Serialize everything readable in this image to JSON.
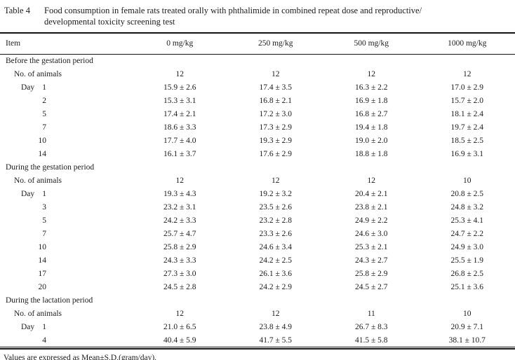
{
  "title": {
    "label": "Table 4",
    "caption_line1": "Food consumption in female rats treated orally with phthalimide in combined repeat dose and reproductive/",
    "caption_line2": "developmental toxicity screening test"
  },
  "colors": {
    "ink": "#1b1b1b",
    "background": "#ffffff"
  },
  "table": {
    "columns": [
      "Item",
      "0 mg/kg",
      "250 mg/kg",
      "500 mg/kg",
      "1000 mg/kg"
    ],
    "sections": [
      {
        "title": "Before the gestation period",
        "day_word": "Day",
        "no_of_animals": {
          "label": "No. of animals",
          "values": [
            "12",
            "12",
            "12",
            "12"
          ]
        },
        "days": [
          {
            "day": "1",
            "values": [
              "15.9 ± 2.6",
              "17.4 ± 3.5",
              "16.3 ± 2.2",
              "17.0 ± 2.9"
            ]
          },
          {
            "day": "2",
            "values": [
              "15.3 ± 3.1",
              "16.8 ± 2.1",
              "16.9 ± 1.8",
              "15.7 ± 2.0"
            ]
          },
          {
            "day": "5",
            "values": [
              "17.4 ± 2.1",
              "17.2 ± 3.0",
              "16.8 ± 2.7",
              "18.1 ± 2.4"
            ]
          },
          {
            "day": "7",
            "values": [
              "18.6 ± 3.3",
              "17.3 ± 2.9",
              "19.4 ± 1.8",
              "19.7 ± 2.4"
            ]
          },
          {
            "day": "10",
            "values": [
              "17.7 ± 4.0",
              "19.3 ± 2.9",
              "19.0 ± 2.0",
              "18.5 ± 2.5"
            ]
          },
          {
            "day": "14",
            "values": [
              "16.1 ± 3.7",
              "17.6 ± 2.9",
              "18.8 ± 1.8",
              "16.9 ± 3.1"
            ]
          }
        ]
      },
      {
        "title": "During the gestation period",
        "day_word": "Day",
        "no_of_animals": {
          "label": "No. of animals",
          "values": [
            "12",
            "12",
            "12",
            "10"
          ]
        },
        "days": [
          {
            "day": "1",
            "values": [
              "19.3 ± 4.3",
              "19.2 ± 3.2",
              "20.4 ± 2.1",
              "20.8 ± 2.5"
            ]
          },
          {
            "day": "3",
            "values": [
              "23.2 ± 3.1",
              "23.5 ± 2.6",
              "23.8 ± 2.1",
              "24.8 ± 3.2"
            ]
          },
          {
            "day": "5",
            "values": [
              "24.2 ± 3.3",
              "23.2 ± 2.8",
              "24.9 ± 2.2",
              "25.3 ± 4.1"
            ]
          },
          {
            "day": "7",
            "values": [
              "25.7 ± 4.7",
              "23.3 ± 2.6",
              "24.6 ± 3.0",
              "24.7 ± 2.2"
            ]
          },
          {
            "day": "10",
            "values": [
              "25.8 ± 2.9",
              "24.6 ± 3.4",
              "25.3 ± 2.1",
              "24.9 ± 3.0"
            ]
          },
          {
            "day": "14",
            "values": [
              "24.3 ± 3.3",
              "24.2 ± 2.5",
              "24.3 ± 2.7",
              "25.5 ± 1.9"
            ]
          },
          {
            "day": "17",
            "values": [
              "27.3 ± 3.0",
              "26.1 ± 3.6",
              "25.8 ± 2.9",
              "26.8 ± 2.5"
            ]
          },
          {
            "day": "20",
            "values": [
              "24.5 ± 2.8",
              "24.2 ± 2.9",
              "24.5 ± 2.7",
              "25.1 ± 3.6"
            ]
          }
        ]
      },
      {
        "title": "During the lactation period",
        "day_word": "Day",
        "no_of_animals": {
          "label": "No. of animals",
          "values": [
            "12",
            "12",
            "11",
            "10"
          ]
        },
        "days": [
          {
            "day": "1",
            "values": [
              "21.0 ± 6.5",
              "23.8 ± 4.9",
              "26.7 ± 8.3",
              "20.9 ± 7.1"
            ]
          },
          {
            "day": "4",
            "values": [
              "40.4 ± 5.9",
              "41.7 ± 5.5",
              "41.5 ± 5.8",
              "38.1 ± 10.7"
            ]
          }
        ]
      }
    ]
  },
  "footnote": "Values are expressed as Mean±S.D.(gram/day)."
}
